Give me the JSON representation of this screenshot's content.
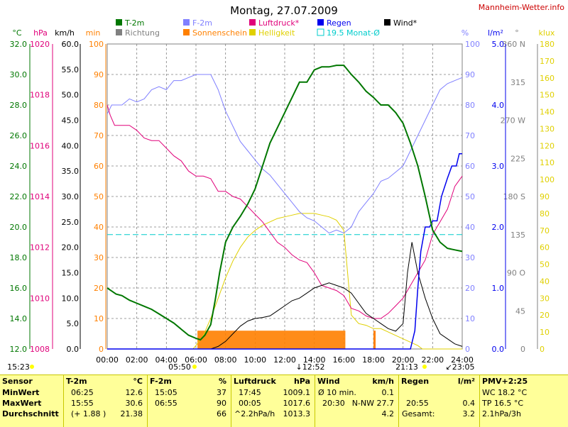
{
  "header": {
    "title": "Montag, 27.07.2009",
    "site": "Mannheim-Wetter.info"
  },
  "legend": [
    {
      "label": "T-2m",
      "color": "#007700",
      "kind": "box"
    },
    {
      "label": "Richtung",
      "color": "#808080",
      "kind": "box"
    },
    {
      "label": "F-2m",
      "color": "#8080ff",
      "kind": "box"
    },
    {
      "label": "Sonnenschein",
      "color": "#ff8000",
      "kind": "box"
    },
    {
      "label": "Luftdruck*",
      "color": "#e0007a",
      "kind": "box"
    },
    {
      "label": "Helligkeit",
      "color": "#e0d000",
      "kind": "box"
    },
    {
      "label": "Regen",
      "color": "#0000ee",
      "kind": "box"
    },
    {
      "label": "19.5 Monat-Ø",
      "color": "#00cccc",
      "kind": "outline"
    },
    {
      "label": "Wind*",
      "color": "#000000",
      "kind": "box"
    }
  ],
  "axis_units": {
    "temp": "°C",
    "press": "hPa",
    "wind": "km/h",
    "sun": "min",
    "hum": "%",
    "rain": "l/m²",
    "dir": "°",
    "lux": "klux"
  },
  "axis_ticks": {
    "temp": [
      "32.0",
      "30.0",
      "28.0",
      "26.0",
      "24.0",
      "22.0",
      "20.0",
      "18.0",
      "16.0",
      "14.0",
      "12.0"
    ],
    "press": [
      "1020",
      "1018",
      "1016",
      "1014",
      "1012",
      "1010",
      "1008"
    ],
    "wind": [
      "60.0",
      "55.0",
      "50.0",
      "45.0",
      "40.0",
      "35.0",
      "30.0",
      "25.0",
      "20.0",
      "15.0",
      "10.0",
      "5.0",
      "0.0"
    ],
    "sun": [
      "100",
      "90",
      "80",
      "70",
      "60",
      "50",
      "40",
      "30",
      "20",
      "10",
      "0"
    ],
    "hum": [
      "100",
      "90",
      "80",
      "70",
      "60",
      "50",
      "40",
      "30",
      "20",
      "10",
      "0"
    ],
    "rain": [
      "5.0",
      "4.0",
      "3.0",
      "2.0",
      "1.0",
      "0.0"
    ],
    "dir": [
      "360 N",
      "315",
      "270 W",
      "225",
      "180 S",
      "135",
      "90 O",
      "45",
      "0"
    ],
    "lux": [
      "180",
      "170",
      "160",
      "150",
      "140",
      "130",
      "120",
      "110",
      "100",
      "90",
      "80",
      "70",
      "60",
      "50",
      "40",
      "30",
      "20",
      "10",
      "0"
    ],
    "x": [
      "00:00",
      "02:00",
      "04:00",
      "06:00",
      "08:00",
      "10:00",
      "12:00",
      "14:00",
      "16:00",
      "18:00",
      "20:00",
      "22:00",
      "24:00"
    ]
  },
  "markers": {
    "sunrise": "05:50",
    "noon": "12:52",
    "sunset": "21:13",
    "moonrise": "15:23",
    "moonset": "23:05"
  },
  "colors": {
    "temp": "#007700",
    "press": "#e0007a",
    "hum": "#8080ff",
    "wind": "#000000",
    "dir": "#808080",
    "sun": "#ff8000",
    "lux": "#e0d000",
    "rain": "#0000ee",
    "avg": "#00cccc",
    "grid": "#808080",
    "table_bg": "#ffff99"
  },
  "chart_data": {
    "type": "line",
    "title": "Montag, 27.07.2009",
    "x_range": [
      0,
      24
    ],
    "temp_c": {
      "ylim": [
        12,
        32
      ],
      "x": [
        0,
        0.3,
        0.6,
        1.0,
        1.5,
        2.0,
        2.5,
        3.0,
        3.5,
        4.0,
        4.5,
        5.0,
        5.5,
        6.0,
        6.3,
        6.6,
        7.0,
        7.3,
        7.6,
        8.0,
        8.5,
        9.0,
        9.5,
        10.0,
        10.5,
        11.0,
        11.5,
        12.0,
        12.5,
        13.0,
        13.5,
        14.0,
        14.5,
        15.0,
        15.5,
        16.0,
        16.5,
        17.0,
        17.5,
        18.0,
        18.5,
        19.0,
        19.5,
        20.0,
        20.5,
        21.0,
        21.5,
        22.0,
        22.5,
        23.0,
        23.5,
        24.0
      ],
      "values": [
        16.0,
        15.8,
        15.6,
        15.5,
        15.2,
        15.0,
        14.8,
        14.6,
        14.3,
        14.0,
        13.7,
        13.3,
        12.9,
        12.7,
        12.6,
        12.9,
        13.6,
        15.2,
        17.0,
        19.0,
        20.0,
        20.7,
        21.5,
        22.5,
        24.0,
        25.5,
        26.5,
        27.5,
        28.5,
        29.5,
        29.5,
        30.3,
        30.5,
        30.5,
        30.6,
        30.6,
        30.0,
        29.5,
        28.9,
        28.5,
        28.0,
        28.0,
        27.5,
        26.8,
        25.5,
        24.0,
        22.0,
        19.8,
        19.0,
        18.6,
        18.5,
        18.4
      ]
    },
    "pressure_hpa": {
      "ylim": [
        1008,
        1020
      ],
      "x": [
        0,
        0.2,
        0.5,
        1.0,
        1.5,
        2.0,
        2.5,
        3.0,
        3.5,
        4.0,
        4.5,
        5.0,
        5.5,
        6.0,
        6.5,
        7.0,
        7.5,
        8.0,
        8.5,
        9.0,
        9.5,
        10.0,
        10.5,
        11.0,
        11.5,
        12.0,
        12.5,
        13.0,
        13.5,
        14.0,
        14.5,
        15.0,
        15.5,
        16.0,
        16.5,
        17.0,
        17.5,
        18.0,
        18.5,
        19.0,
        19.5,
        20.0,
        20.5,
        21.0,
        21.5,
        22.0,
        22.5,
        23.0,
        23.5,
        24.0
      ],
      "values": [
        1017.6,
        1017.2,
        1016.8,
        1016.8,
        1016.8,
        1016.6,
        1016.3,
        1016.2,
        1016.2,
        1015.9,
        1015.6,
        1015.4,
        1015.0,
        1014.8,
        1014.8,
        1014.7,
        1014.2,
        1014.2,
        1014.0,
        1013.9,
        1013.6,
        1013.3,
        1013.0,
        1012.6,
        1012.2,
        1012.0,
        1011.7,
        1011.5,
        1011.4,
        1011.0,
        1010.5,
        1010.4,
        1010.3,
        1010.1,
        1009.6,
        1009.5,
        1009.3,
        1009.2,
        1009.2,
        1009.4,
        1009.7,
        1010.0,
        1010.5,
        1011.0,
        1011.5,
        1012.5,
        1013.0,
        1013.5,
        1014.4,
        1014.8
      ]
    },
    "humidity_pct": {
      "ylim": [
        0,
        100
      ],
      "x": [
        0,
        0.3,
        1.0,
        1.5,
        2.0,
        2.5,
        3.0,
        3.5,
        4.0,
        4.5,
        5.0,
        5.5,
        6.0,
        6.5,
        7.0,
        7.5,
        8.0,
        8.5,
        9.0,
        9.5,
        10.0,
        10.5,
        11.0,
        11.5,
        12.0,
        12.5,
        13.0,
        13.5,
        14.0,
        14.5,
        15.0,
        15.5,
        16.0,
        16.5,
        17.0,
        17.5,
        18.0,
        18.5,
        19.0,
        19.5,
        20.0,
        20.5,
        21.0,
        21.5,
        22.0,
        22.5,
        23.0,
        23.5,
        24.0
      ],
      "values": [
        77,
        80,
        80,
        82,
        81,
        82,
        85,
        86,
        85,
        88,
        88,
        89,
        90,
        90,
        90,
        85,
        78,
        73,
        68,
        65,
        62,
        59,
        57,
        54,
        51,
        48,
        45,
        43,
        42,
        40,
        38,
        39,
        38,
        40,
        45,
        48,
        51,
        55,
        56,
        58,
        60,
        65,
        70,
        75,
        80,
        85,
        87,
        88,
        89
      ]
    },
    "wind_kmh": {
      "ylim": [
        0,
        60
      ],
      "x": [
        0,
        6.0,
        7.0,
        7.5,
        8.0,
        8.5,
        9.0,
        9.5,
        10.0,
        10.5,
        11.0,
        11.5,
        12.0,
        12.5,
        13.0,
        13.5,
        14.0,
        14.5,
        15.0,
        15.5,
        16.0,
        16.5,
        17.0,
        17.5,
        18.0,
        18.5,
        19.0,
        19.5,
        20.0,
        20.3,
        20.6,
        21.0,
        21.5,
        22.0,
        22.5,
        23.0,
        23.5,
        24.0
      ],
      "values": [
        0,
        0,
        0,
        0.5,
        1.5,
        3.0,
        4.5,
        5.5,
        6.0,
        6.2,
        6.5,
        7.5,
        8.5,
        9.5,
        10.0,
        11.0,
        12.0,
        12.5,
        13.0,
        12.5,
        12.0,
        11.0,
        9.0,
        7.0,
        6.0,
        5.0,
        4.0,
        3.5,
        5.0,
        15.0,
        21.0,
        15.0,
        10.0,
        6.0,
        3.0,
        2.0,
        1.0,
        0.5
      ]
    },
    "brightness_klux": {
      "ylim": [
        0,
        180
      ],
      "x": [
        0,
        5.8,
        6.0,
        6.5,
        7.0,
        7.5,
        8.0,
        8.5,
        9.0,
        9.5,
        10.0,
        10.5,
        11.0,
        11.5,
        12.0,
        12.5,
        13.0,
        13.5,
        14.0,
        14.5,
        15.0,
        15.5,
        16.0,
        16.2,
        16.5,
        17.0,
        17.5,
        18.0,
        18.5,
        19.0,
        19.5,
        20.0,
        20.5,
        21.0,
        21.3,
        24.0
      ],
      "values": [
        0,
        0,
        2,
        8,
        18,
        30,
        42,
        52,
        60,
        66,
        70,
        73,
        75,
        77,
        78,
        79,
        80,
        80,
        80,
        79,
        78,
        76,
        70,
        50,
        20,
        15,
        14,
        12,
        12,
        10,
        8,
        6,
        4,
        2,
        0,
        0
      ]
    },
    "rain_mm": {
      "ylim": [
        0,
        5
      ],
      "x": [
        0,
        20.5,
        20.8,
        21.0,
        21.2,
        21.5,
        21.8,
        22.0,
        22.3,
        22.6,
        23.0,
        23.3,
        23.6,
        23.8,
        24.0
      ],
      "values": [
        0,
        0,
        0.3,
        1.0,
        1.6,
        2.0,
        2.0,
        2.1,
        2.1,
        2.5,
        2.8,
        3.0,
        3.0,
        3.2,
        3.2
      ]
    },
    "monthly_avg_c": 19.5
  },
  "table": {
    "sensor": {
      "header": "Sensor",
      "rows": [
        "MinWert",
        "MaxWert",
        "Durchschnitt"
      ]
    },
    "temp": {
      "header": "T-2m",
      "unit": "°C",
      "rows": [
        [
          "06:25",
          "12.6"
        ],
        [
          "15:55",
          "30.6"
        ],
        [
          "(+ 1.88 )",
          "21.38"
        ]
      ]
    },
    "hum": {
      "header": "F-2m",
      "unit": "%",
      "rows": [
        [
          "15:05",
          "37"
        ],
        [
          "06:55",
          "90"
        ],
        [
          "",
          "66"
        ]
      ]
    },
    "press": {
      "header": "Luftdruck",
      "unit": "hPa",
      "rows": [
        [
          "17:45",
          "1009.1"
        ],
        [
          "00:05",
          "1017.6"
        ],
        [
          "^2.2hPa/h",
          "1013.3"
        ]
      ]
    },
    "wind": {
      "header": "Wind",
      "unit": "km/h",
      "rows": [
        [
          "Ø 10 min.",
          "0.1"
        ],
        [
          "20:30",
          "N-NW 27.7"
        ],
        [
          "",
          "4.2"
        ]
      ]
    },
    "rain": {
      "header": "Regen",
      "unit": "l/m²",
      "rows": [
        [
          "",
          ""
        ],
        [
          "20:55",
          "0.4"
        ],
        [
          "Gesamt:",
          "3.2"
        ]
      ]
    },
    "pmv": {
      "header": "PMV+2:25",
      "rows": [
        "WC 18.2 °C",
        "TP 16.5 °C",
        "2.1hPa/3h"
      ]
    }
  }
}
